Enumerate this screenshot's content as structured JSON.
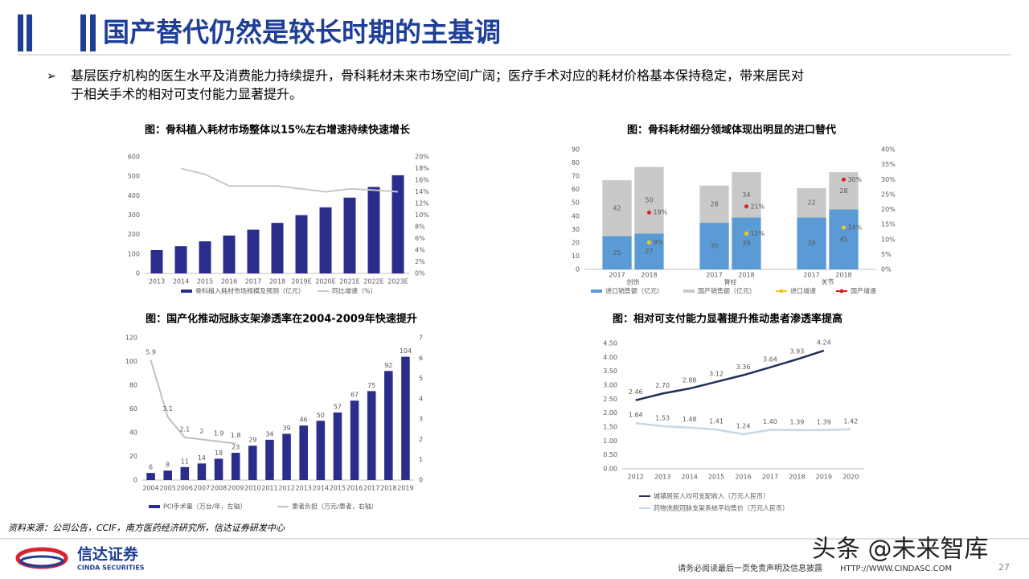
{
  "header": {
    "title": "国产替代仍然是较长时期的主基调",
    "bullet": [
      "基层医疗机构的医生水平及消费能力持续提升，骨科耗材未来市场空间广阔；医疗手术对应的耗材价格基本保持稳定，带来居民对",
      "于相关手术的相对可支付能力显著提升。"
    ]
  },
  "chart_data": [
    {
      "type": "combo",
      "title": "图：骨科植入耗材市场整体以15%左右增速持续快速增长",
      "categories": [
        "2013",
        "2014",
        "2015",
        "2016",
        "2017",
        "2018",
        "2019E",
        "2020E",
        "2021E",
        "2022E",
        "2023E"
      ],
      "series": [
        {
          "name": "骨科植入耗材市场规模及预测（亿元）",
          "kind": "bar",
          "color": "#2b2d8c",
          "values": [
            120,
            140,
            165,
            195,
            225,
            260,
            300,
            340,
            390,
            445,
            505
          ]
        },
        {
          "name": "同比增速（%）",
          "kind": "line",
          "axis": "y2",
          "color": "#c8c8c8",
          "values": [
            null,
            18,
            17,
            15,
            15,
            15,
            14.5,
            14,
            14.5,
            14.3,
            14
          ]
        }
      ],
      "ylim": [
        0,
        600
      ],
      "yticks": [
        0,
        100,
        200,
        300,
        400,
        500,
        600
      ],
      "y2lim": [
        0,
        20
      ],
      "y2ticks": [
        {
          "value": 0,
          "label": "0%"
        },
        {
          "value": 2,
          "label": "2%"
        },
        {
          "value": 4,
          "label": "4%"
        },
        {
          "value": 6,
          "label": "6%"
        },
        {
          "value": 8,
          "label": "8%"
        },
        {
          "value": 10,
          "label": "10%"
        },
        {
          "value": 12,
          "label": "12%"
        },
        {
          "value": 14,
          "label": "14%"
        },
        {
          "value": 16,
          "label": "16%"
        },
        {
          "value": 18,
          "label": "18%"
        },
        {
          "value": 20,
          "label": "20%"
        }
      ]
    },
    {
      "type": "stacked",
      "title": "图：骨科耗材细分领域体现出明显的进口替代",
      "categories": [
        "2017",
        "2018",
        "2017",
        "2018",
        "2017",
        "2018"
      ],
      "groups": [
        "创伤",
        "脊柱",
        "关节"
      ],
      "series": [
        {
          "name": "进口销售额（亿元）",
          "kind": "bar",
          "color": "#5b9bd5",
          "values": [
            25,
            27,
            35,
            39,
            39,
            45
          ]
        },
        {
          "name": "国产销售额（亿元）",
          "kind": "bar",
          "color": "#c9c9c9",
          "values": [
            42,
            50,
            28,
            34,
            22,
            28
          ]
        },
        {
          "name": "进口增速",
          "kind": "point",
          "axis": "y2",
          "color": "#f2c80f",
          "values": [
            null,
            9,
            null,
            12,
            null,
            14
          ],
          "value_labels": [
            null,
            "9%",
            null,
            "12%",
            null,
            "14%"
          ]
        },
        {
          "name": "国产增速",
          "kind": "point",
          "axis": "y2",
          "color": "#e0201b",
          "values": [
            null,
            19,
            null,
            21,
            null,
            30
          ],
          "value_labels": [
            null,
            "19%",
            null,
            "21%",
            null,
            "30%"
          ]
        }
      ],
      "ylim": [
        0,
        90
      ],
      "yticks": [
        0,
        10,
        20,
        30,
        40,
        50,
        60,
        70,
        80,
        90
      ],
      "y2lim": [
        0,
        40
      ],
      "y2ticks": [
        {
          "value": 0,
          "label": "0%"
        },
        {
          "value": 5,
          "label": "5%"
        },
        {
          "value": 10,
          "label": "10%"
        },
        {
          "value": 15,
          "label": "15%"
        },
        {
          "value": 20,
          "label": "20%"
        },
        {
          "value": 25,
          "label": "25%"
        },
        {
          "value": 30,
          "label": "30%"
        },
        {
          "value": 35,
          "label": "35%"
        },
        {
          "value": 40,
          "label": "40%"
        }
      ]
    },
    {
      "type": "combo",
      "title": "图：国产化推动冠脉支架渗透率在2004-2009年快速提升",
      "data_labels": true,
      "categories": [
        "2004",
        "2005",
        "2006",
        "2007",
        "2008",
        "2009",
        "2010",
        "2011",
        "2012",
        "2013",
        "2014",
        "2015",
        "2016",
        "2017",
        "2018",
        "2019"
      ],
      "series": [
        {
          "name": "PCI手术量（万台/年，左轴）",
          "kind": "bar",
          "color": "#2b2d8c",
          "values": [
            6,
            8,
            11,
            14,
            18,
            23,
            29,
            34,
            39,
            46,
            50,
            57,
            67,
            75,
            92,
            104
          ]
        },
        {
          "name": "患者负担（万元/患者，右轴）",
          "kind": "line",
          "axis": "y2",
          "color": "#c0c0c0",
          "values": [
            5.9,
            3.1,
            2.1,
            2,
            1.9,
            1.8,
            null,
            null,
            null,
            null,
            null,
            null,
            null,
            null,
            null,
            null
          ]
        }
      ],
      "ylim": [
        0,
        120
      ],
      "yticks": [
        0,
        20,
        40,
        60,
        80,
        100,
        120
      ],
      "y2lim": [
        0,
        7
      ],
      "y2ticks": [
        0,
        1,
        2,
        3,
        4,
        5,
        6,
        7
      ]
    },
    {
      "type": "line",
      "title": "图：相对可支付能力显著提升推动患者渗透率提高",
      "categories": [
        "2012",
        "2013",
        "2014",
        "2015",
        "2016",
        "2017",
        "2018",
        "2019",
        "2020"
      ],
      "series": [
        {
          "name": "城镇居民人均可支配收入（万元人民币）",
          "color": "#1f2f5a",
          "values": [
            2.46,
            2.7,
            2.88,
            3.12,
            3.36,
            3.64,
            3.93,
            4.24,
            null
          ],
          "value_labels": [
            "2.46",
            "2.70",
            "2.88",
            "3.12",
            "3.36",
            "3.64",
            "3.93",
            "4.24",
            null
          ]
        },
        {
          "name": "药物洗脱冠脉支架系统平均售价（万元人民币）",
          "color": "#c5d9e8",
          "values": [
            1.64,
            1.53,
            1.48,
            1.41,
            1.24,
            1.4,
            1.39,
            1.39,
            1.42
          ],
          "value_labels": [
            "1.64",
            "1.53",
            "1.48",
            "1.41",
            "1.24",
            "1.40",
            "1.39",
            "1.39",
            "1.42"
          ]
        }
      ],
      "ylim": [
        0,
        4.5
      ],
      "yticks": [
        {
          "value": 0,
          "label": "0.00"
        },
        {
          "value": 0.5,
          "label": "0.50"
        },
        {
          "value": 1,
          "label": "1.00"
        },
        {
          "value": 1.5,
          "label": "1.50"
        },
        {
          "value": 2,
          "label": "2.00"
        },
        {
          "value": 2.5,
          "label": "2.50"
        },
        {
          "value": 3,
          "label": "3.00"
        },
        {
          "value": 3.5,
          "label": "3.50"
        },
        {
          "value": 4,
          "label": "4.00"
        },
        {
          "value": 4.5,
          "label": "4.50"
        }
      ]
    }
  ],
  "footer": {
    "source": "资料来源：公司公告，CCIF，南方医药经济研究所，信达证券研发中心",
    "logo": "信达证券",
    "logo_en": "CINDA SECURITIES",
    "disclaimer": "请务必阅读最后一页免责声明及信息披露",
    "url": "HTTP://WWW.CINDASC.COM",
    "page": "27",
    "watermark": "头条 @未来智库"
  }
}
